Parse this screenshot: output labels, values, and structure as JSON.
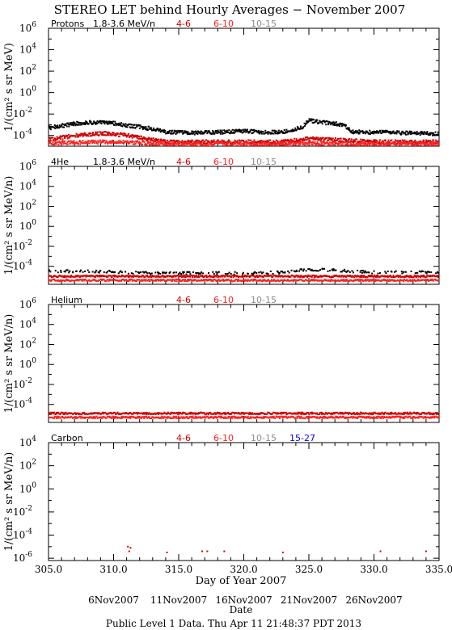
{
  "title": "STEREO LET behind Hourly Averages − November 2007",
  "xlabel": "Day of Year 2007",
  "date_axis_label": "Date",
  "footer": "Public Level 1 Data. Thu Apr 11 21:48:37 PDT 2013",
  "date_ticks": [
    {
      "doy": 310.0,
      "label": "6Nov2007"
    },
    {
      "doy": 315.0,
      "label": "11Nov2007"
    },
    {
      "doy": 320.0,
      "label": "16Nov2007"
    },
    {
      "doy": 325.0,
      "label": "21Nov2007"
    },
    {
      "doy": 330.0,
      "label": "26Nov2007"
    }
  ],
  "colors": {
    "black": "#000000",
    "red_dark": "#cc0000",
    "red": "#ff2020",
    "gray": "#8c8c8c",
    "blue": "#0000ee"
  },
  "chart_data": [
    {
      "type": "scatter",
      "name": "Protons",
      "ylabel": "1/(cm² s sr MeV)",
      "xlim": [
        305.0,
        335.0
      ],
      "ylim_log10": [
        -5,
        6
      ],
      "yticks_exp": [
        6,
        4,
        2,
        0,
        -2,
        -4
      ],
      "xticks": [
        305.0,
        310.0,
        315.0,
        320.0,
        325.0,
        330.0,
        335.0
      ],
      "show_xtick_labels": false,
      "legend": [
        {
          "label": "Protons",
          "color": "black"
        },
        {
          "label": "1.8-3.6 MeV/n",
          "color": "black"
        },
        {
          "label": "4-6",
          "color": "red_dark"
        },
        {
          "label": "6-10",
          "color": "red"
        },
        {
          "label": "10-15",
          "color": "gray"
        }
      ],
      "series": [
        {
          "label": "1.8-3.6 MeV/n",
          "color": "black",
          "x": [
            305.0,
            306.0,
            307.0,
            308.0,
            309.0,
            310.0,
            311.0,
            312.0,
            313.0,
            314.0,
            316.0,
            318.0,
            320.0,
            322.0,
            323.5,
            324.5,
            325.0,
            326.0,
            327.0,
            327.8,
            328.3,
            330.0,
            332.0,
            335.0
          ],
          "log10_y": [
            -3.3,
            -3.1,
            -2.9,
            -2.8,
            -2.8,
            -2.85,
            -3.1,
            -3.2,
            -3.4,
            -3.7,
            -3.75,
            -3.7,
            -3.6,
            -3.7,
            -3.6,
            -3.2,
            -2.6,
            -2.8,
            -2.9,
            -3.1,
            -3.65,
            -3.7,
            -3.75,
            -3.85
          ]
        },
        {
          "label": "4-6",
          "color": "red_dark",
          "x": [
            305.0,
            306.5,
            308.0,
            309.5,
            311.0,
            312.5,
            314.0,
            318.0,
            323.0,
            325.0,
            327.0,
            330.0,
            335.0
          ],
          "log10_y": [
            -4.4,
            -4.1,
            -3.9,
            -3.8,
            -4.0,
            -4.3,
            -4.6,
            -4.6,
            -4.6,
            -4.3,
            -4.4,
            -4.6,
            -4.6
          ]
        },
        {
          "label": "6-10",
          "color": "red",
          "x": [
            305.0,
            310.0,
            315.0,
            320.0,
            325.0,
            330.0,
            335.0
          ],
          "log10_y": [
            -4.7,
            -4.6,
            -4.8,
            -4.8,
            -4.75,
            -4.8,
            -4.8
          ]
        }
      ]
    },
    {
      "type": "scatter",
      "name": "4He",
      "ylabel": "1/(cm² s sr MeV/n)",
      "xlim": [
        305.0,
        335.0
      ],
      "ylim_log10": [
        -5.8,
        6
      ],
      "yticks_exp": [
        6,
        4,
        2,
        0,
        -2,
        -4
      ],
      "xticks": [
        305.0,
        310.0,
        315.0,
        320.0,
        325.0,
        330.0,
        335.0
      ],
      "show_xtick_labels": false,
      "legend": [
        {
          "label": "4He",
          "color": "black"
        },
        {
          "label": "1.8-3.6 MeV/n",
          "color": "black"
        },
        {
          "label": "4-6",
          "color": "red_dark"
        },
        {
          "label": "6-10",
          "color": "red"
        },
        {
          "label": "10-15",
          "color": "gray"
        }
      ],
      "series": [
        {
          "label": "1.8-3.6 MeV/n",
          "color": "black",
          "x": [
            305.0,
            308.0,
            311.0,
            314.0,
            317.0,
            320.0,
            323.0,
            325.0,
            327.0,
            330.0,
            335.0
          ],
          "log10_y": [
            -4.5,
            -4.5,
            -4.6,
            -4.7,
            -4.65,
            -4.7,
            -4.6,
            -4.3,
            -4.4,
            -4.6,
            -4.6
          ]
        },
        {
          "label": "4-6",
          "color": "red_dark",
          "x": [
            305.0,
            315.0,
            325.0,
            335.0
          ],
          "log10_y": [
            -5.0,
            -5.0,
            -5.0,
            -5.0
          ]
        },
        {
          "label": "6-10",
          "color": "red",
          "x": [
            305.0,
            315.0,
            325.0,
            335.0
          ],
          "log10_y": [
            -5.4,
            -5.4,
            -5.4,
            -5.4
          ]
        }
      ]
    },
    {
      "type": "scatter",
      "name": "Helium",
      "ylabel": "1/(cm² s sr MeV/n)",
      "xlim": [
        305.0,
        335.0
      ],
      "ylim_log10": [
        -5.8,
        6
      ],
      "yticks_exp": [
        6,
        4,
        2,
        0,
        -2,
        -4
      ],
      "xticks": [
        305.0,
        310.0,
        315.0,
        320.0,
        325.0,
        330.0,
        335.0
      ],
      "show_xtick_labels": false,
      "legend": [
        {
          "label": "Helium",
          "color": "black"
        },
        {
          "label": "4-6",
          "color": "red_dark"
        },
        {
          "label": "6-10",
          "color": "red"
        },
        {
          "label": "10-15",
          "color": "gray"
        }
      ],
      "series": [
        {
          "label": "4-6",
          "color": "red_dark",
          "x": [
            305.0,
            315.0,
            325.0,
            335.0
          ],
          "log10_y": [
            -4.9,
            -4.9,
            -4.9,
            -4.9
          ]
        },
        {
          "label": "6-10",
          "color": "red",
          "x": [
            305.0,
            315.0,
            325.0,
            335.0
          ],
          "log10_y": [
            -5.3,
            -5.3,
            -5.3,
            -5.3
          ]
        }
      ]
    },
    {
      "type": "scatter",
      "name": "Carbon",
      "ylabel": "1/(cm² s sr MeV/n)",
      "xlim": [
        305.0,
        335.0
      ],
      "ylim_log10": [
        -6.2,
        4
      ],
      "yticks_exp": [
        4,
        2,
        0,
        -2,
        -4,
        -6
      ],
      "xticks": [
        305.0,
        310.0,
        315.0,
        320.0,
        325.0,
        330.0,
        335.0
      ],
      "show_xtick_labels": true,
      "legend": [
        {
          "label": "Carbon",
          "color": "black"
        },
        {
          "label": "4-6",
          "color": "red_dark"
        },
        {
          "label": "6-10",
          "color": "red"
        },
        {
          "label": "10-15",
          "color": "gray"
        },
        {
          "label": "15-27",
          "color": "blue"
        }
      ],
      "series": [
        {
          "label": "4-6",
          "color": "red_dark",
          "x": [
            311.1,
            311.3,
            311.2,
            314.1,
            316.8,
            317.2,
            318.5,
            323.0,
            330.5,
            334.0
          ],
          "log10_y": [
            -5.0,
            -5.1,
            -5.4,
            -5.5,
            -5.4,
            -5.4,
            -5.4,
            -5.5,
            -5.4,
            -5.4
          ]
        }
      ]
    }
  ]
}
